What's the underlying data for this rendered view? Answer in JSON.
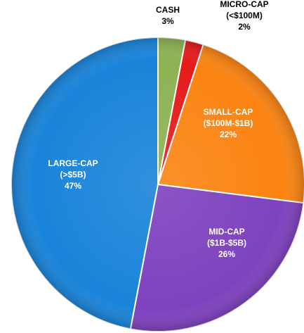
{
  "chart_data": {
    "type": "pie",
    "title": "",
    "legend": "none",
    "slices": [
      {
        "lines": [
          "CASH"
        ],
        "label_value": "3%",
        "value": 3,
        "color": "#8db255"
      },
      {
        "lines": [
          "MICRO-CAP",
          "(<$100M)"
        ],
        "label_value": "2%",
        "value": 2,
        "color": "#e51b1b"
      },
      {
        "lines": [
          "SMALL-CAP",
          "($100M-$1B)"
        ],
        "label_value": "22%",
        "value": 22,
        "color": "#fb8412"
      },
      {
        "lines": [
          "MID-CAP",
          "($1B-$5B)"
        ],
        "label_value": "26%",
        "value": 26,
        "color": "#7e42bf"
      },
      {
        "lines": [
          "LARGE-CAP",
          "(>$5B)"
        ],
        "label_value": "47%",
        "value": 47,
        "color": "#1a84da"
      }
    ],
    "label_colors": {
      "inside": "#ffffff",
      "outside": "#000000"
    }
  }
}
